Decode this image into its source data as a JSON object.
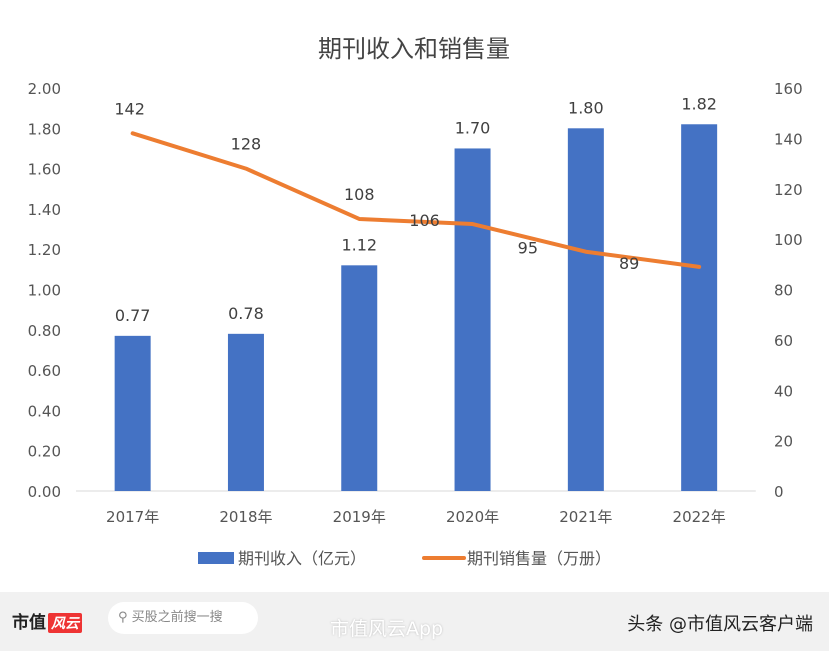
{
  "chart_data": {
    "type": "bar+line",
    "title": "期刊收入和销售量",
    "categories": [
      "2017年",
      "2018年",
      "2019年",
      "2020年",
      "2021年",
      "2022年"
    ],
    "series": [
      {
        "name": "期刊收入（亿元）",
        "type": "bar",
        "axis": "left",
        "color": "#4472C4",
        "values": [
          0.77,
          0.78,
          1.12,
          1.7,
          1.8,
          1.82
        ],
        "labels": [
          "0.77",
          "0.78",
          "1.12",
          "1.70",
          "1.80",
          "1.82"
        ]
      },
      {
        "name": "期刊销售量（万册）",
        "type": "line",
        "axis": "right",
        "color": "#ED7D31",
        "values": [
          142,
          128,
          108,
          106,
          95,
          89
        ],
        "labels": [
          "142",
          "128",
          "108",
          "106",
          "95",
          "89"
        ]
      }
    ],
    "left_axis": {
      "ylim": [
        0,
        2.0
      ],
      "ticks": [
        "0.00",
        "0.20",
        "0.40",
        "0.60",
        "0.80",
        "1.00",
        "1.20",
        "1.40",
        "1.60",
        "1.80",
        "2.00"
      ]
    },
    "right_axis": {
      "ylim": [
        0,
        160
      ],
      "ticks": [
        "0",
        "20",
        "40",
        "60",
        "80",
        "100",
        "120",
        "140",
        "160"
      ]
    },
    "grid": false,
    "legend": "bottom"
  },
  "footer": {
    "brand": "市值",
    "brand_logo": "风云",
    "search_placeholder": "买股之前搜一搜",
    "weibo": "市值风云App",
    "source": "头条 @市值风云客户端"
  }
}
